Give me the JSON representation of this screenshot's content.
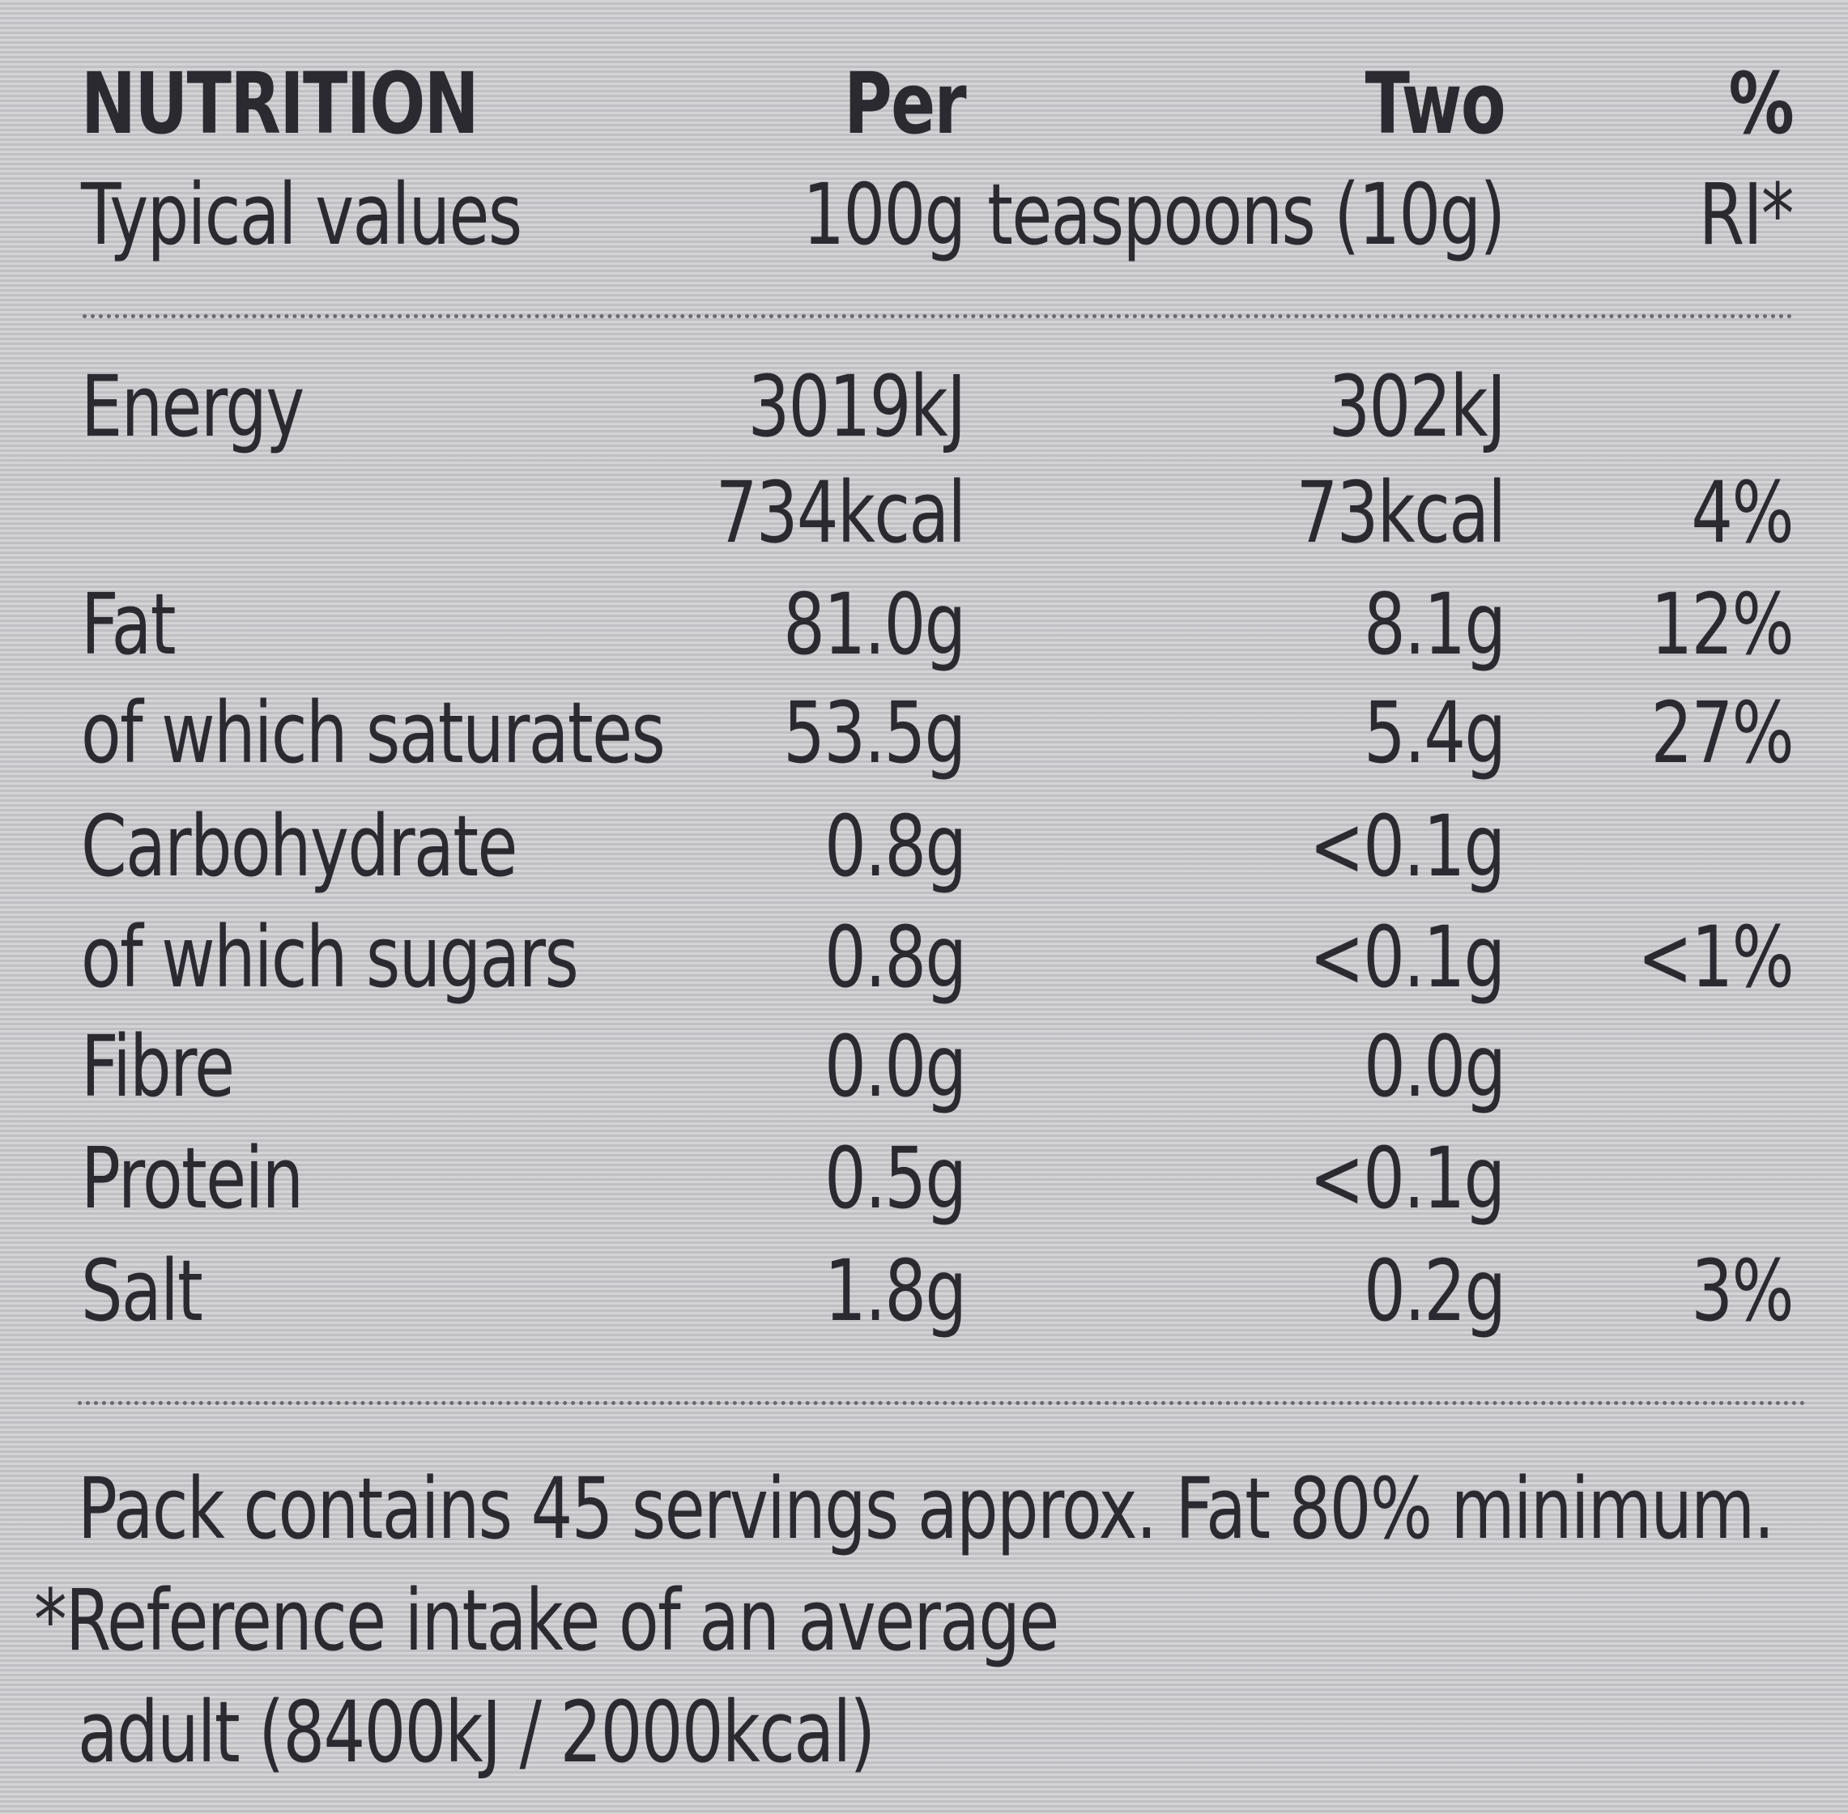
{
  "header": {
    "rows": [
      {
        "label": "NUTRITION",
        "per_100g": "Per",
        "per_serving": "Two",
        "ri": "%"
      },
      {
        "label": "Typical values",
        "per_100g": "100g",
        "per_serving": "teaspoons (10g)",
        "ri": "RI*"
      }
    ]
  },
  "table": {
    "rows": [
      {
        "label": "Energy",
        "per_100g": "3019kJ",
        "per_serving": "302kJ"
      },
      {
        "per_100g": "734kcal",
        "per_serving": "73kcal",
        "ri": "4%"
      },
      {
        "label": "Fat",
        "per_100g": "81.0g",
        "per_serving": "8.1g",
        "ri": "12%"
      },
      {
        "label": "of which saturates",
        "per_100g": "53.5g",
        "per_serving": "5.4g",
        "ri": "27%"
      },
      {
        "label": "Carbohydrate",
        "per_100g": "0.8g",
        "per_serving": "<0.1g"
      },
      {
        "label": "of which sugars",
        "per_100g": "0.8g",
        "per_serving": "<0.1g",
        "ri": "<1%"
      },
      {
        "label": "Fibre",
        "per_100g": "0.0g",
        "per_serving": "0.0g"
      },
      {
        "label": "Protein",
        "per_100g": "0.5g",
        "per_serving": "<0.1g"
      },
      {
        "label": "Salt",
        "per_100g": "1.8g",
        "per_serving": "0.2g",
        "ri": "3%"
      }
    ]
  },
  "footer": {
    "lines": [
      "Pack contains 45 servings approx. Fat 80% minimum.",
      "*Reference intake of an average",
      "adult (8400kJ / 2000kcal)"
    ]
  }
}
